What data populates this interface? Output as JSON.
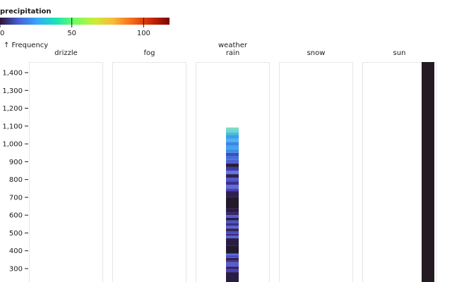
{
  "chart_data": {
    "type": "bar",
    "facet_field": "weather",
    "facets": [
      "drizzle",
      "fog",
      "rain",
      "snow",
      "sun"
    ],
    "ylabel": "↑ Frequency",
    "ylim": [
      210,
      1510
    ],
    "y_ticks": [
      300,
      400,
      500,
      600,
      700,
      800,
      900,
      1000,
      1100,
      1200,
      1300,
      1400
    ],
    "y_tick_labels": [
      "300",
      "400",
      "500",
      "600",
      "700",
      "800",
      "900",
      "1,000",
      "1,100",
      "1,200",
      "1,300",
      "1,400"
    ],
    "color_legend": {
      "title": "precipitation",
      "domain": [
        0,
        118
      ],
      "ticks": [
        0,
        50,
        100
      ],
      "tick_labels": [
        "0",
        "50",
        "100"
      ],
      "scheme": [
        "#30123b",
        "#4662d7",
        "#36aaf9",
        "#1ae4b6",
        "#72fe5e",
        "#c8ef34",
        "#faba39",
        "#f66b19",
        "#cb2a04",
        "#7a0403"
      ]
    },
    "stacks": [
      {
        "facet": "rain",
        "segments": [
          {
            "y0": 210,
            "y1": 280,
            "color": "#2a1d44"
          },
          {
            "y0": 280,
            "y1": 300,
            "color": "#4a3fb3"
          },
          {
            "y0": 300,
            "y1": 310,
            "color": "#2b1f48"
          },
          {
            "y0": 310,
            "y1": 335,
            "color": "#5a5ad0"
          },
          {
            "y0": 335,
            "y1": 345,
            "color": "#3f3c9f"
          },
          {
            "y0": 345,
            "y1": 360,
            "color": "#2e2150"
          },
          {
            "y0": 360,
            "y1": 375,
            "color": "#4c4dc2"
          },
          {
            "y0": 375,
            "y1": 385,
            "color": "#5f6ddb"
          },
          {
            "y0": 385,
            "y1": 430,
            "color": "#221a2c"
          },
          {
            "y0": 430,
            "y1": 470,
            "color": "#2a1d44"
          },
          {
            "y0": 470,
            "y1": 485,
            "color": "#5564d6"
          },
          {
            "y0": 485,
            "y1": 495,
            "color": "#36276e"
          },
          {
            "y0": 495,
            "y1": 510,
            "color": "#4b4cc0"
          },
          {
            "y0": 510,
            "y1": 525,
            "color": "#2e2150"
          },
          {
            "y0": 525,
            "y1": 540,
            "color": "#5b63d8"
          },
          {
            "y0": 540,
            "y1": 555,
            "color": "#3a2f8a"
          },
          {
            "y0": 555,
            "y1": 570,
            "color": "#4d55c9"
          },
          {
            "y0": 570,
            "y1": 585,
            "color": "#2b1f48"
          },
          {
            "y0": 585,
            "y1": 600,
            "color": "#5a5ad0"
          },
          {
            "y0": 600,
            "y1": 615,
            "color": "#36276e"
          },
          {
            "y0": 615,
            "y1": 640,
            "color": "#2a1d44"
          },
          {
            "y0": 640,
            "y1": 700,
            "color": "#221a2c"
          },
          {
            "y0": 700,
            "y1": 735,
            "color": "#2e2150"
          },
          {
            "y0": 735,
            "y1": 750,
            "color": "#4a3fb3"
          },
          {
            "y0": 750,
            "y1": 770,
            "color": "#5f6ddb"
          },
          {
            "y0": 770,
            "y1": 790,
            "color": "#3a2f8a"
          },
          {
            "y0": 790,
            "y1": 810,
            "color": "#4f58cb"
          },
          {
            "y0": 810,
            "y1": 830,
            "color": "#2e2150"
          },
          {
            "y0": 830,
            "y1": 850,
            "color": "#6474e0"
          },
          {
            "y0": 850,
            "y1": 870,
            "color": "#3f3c9f"
          },
          {
            "y0": 870,
            "y1": 890,
            "color": "#2a1d44"
          },
          {
            "y0": 890,
            "y1": 910,
            "color": "#5060cf"
          },
          {
            "y0": 910,
            "y1": 930,
            "color": "#4470df"
          },
          {
            "y0": 930,
            "y1": 950,
            "color": "#3b4fb8"
          },
          {
            "y0": 950,
            "y1": 970,
            "color": "#3c8ee8"
          },
          {
            "y0": 970,
            "y1": 990,
            "color": "#46a2f0"
          },
          {
            "y0": 990,
            "y1": 1010,
            "color": "#3d86e6"
          },
          {
            "y0": 1010,
            "y1": 1030,
            "color": "#4fb4f2"
          },
          {
            "y0": 1030,
            "y1": 1050,
            "color": "#3f9cee"
          },
          {
            "y0": 1050,
            "y1": 1065,
            "color": "#46c0d8"
          },
          {
            "y0": 1065,
            "y1": 1080,
            "color": "#6fd6d0"
          },
          {
            "y0": 1080,
            "y1": 1092,
            "color": "#7fd9c6"
          }
        ]
      },
      {
        "facet": "sun",
        "segments": [
          {
            "y0": 210,
            "y1": 1510,
            "color": "#231a24"
          }
        ]
      }
    ]
  }
}
